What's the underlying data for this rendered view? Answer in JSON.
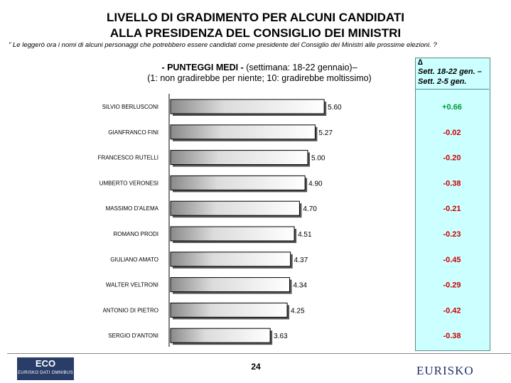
{
  "title": {
    "line1": "LIVELLO DI GRADIMENTO PER ALCUNI CANDIDATI",
    "line2": "ALLA PRESIDENZA DEL CONSIGLIO DEI MINISTRI"
  },
  "note": "\" Le leggerò ora i nomi di alcuni personaggi che potrebbero essere candidati come presidente del Consiglio dei Ministri alle prossime elezioni. ?",
  "subtitle": {
    "bold": "- PUNTEGGI MEDI -",
    "rest": " (settimana: 18-22 gennaio)–",
    "line2": "(1: non gradirebbe per niente; 10: gradirebbe moltissimo)"
  },
  "delta_header": {
    "symbol": "∆",
    "line1": "Sett. 18-22 gen. –",
    "line2": "Sett. 2-5 gen."
  },
  "colors": {
    "positive": "#009933",
    "negative": "#cc0000",
    "panel": "#ccffff"
  },
  "chart_data": {
    "type": "bar",
    "orientation": "horizontal",
    "categories": [
      "SILVIO BERLUSCONI",
      "GIANFRANCO FINI",
      "FRANCESCO RUTELLI",
      "UMBERTO VERONESI",
      "MASSIMO D'ALEMA",
      "ROMANO PRODI",
      "GIULIANO AMATO",
      "WALTER VELTRONI",
      "ANTONIO DI PIETRO",
      "SERGIO D'ANTONI"
    ],
    "values": [
      5.6,
      5.27,
      5.0,
      4.9,
      4.7,
      4.51,
      4.37,
      4.34,
      4.25,
      3.63
    ],
    "value_labels": [
      "5.60",
      "5.27",
      "5.00",
      "4.90",
      "4.70",
      "4.51",
      "4.37",
      "4.34",
      "4.25",
      "3.63"
    ],
    "deltas": [
      "+0.66",
      "-0.02",
      "-0.20",
      "-0.38",
      "-0.21",
      "-0.23",
      "-0.45",
      "-0.29",
      "-0.42",
      "-0.38"
    ]
  },
  "footer": {
    "page": "24",
    "logo_left": "ECO",
    "logo_left_sub": "EURISKO DATI OMNIBUS",
    "logo_right": "EURISKO"
  }
}
